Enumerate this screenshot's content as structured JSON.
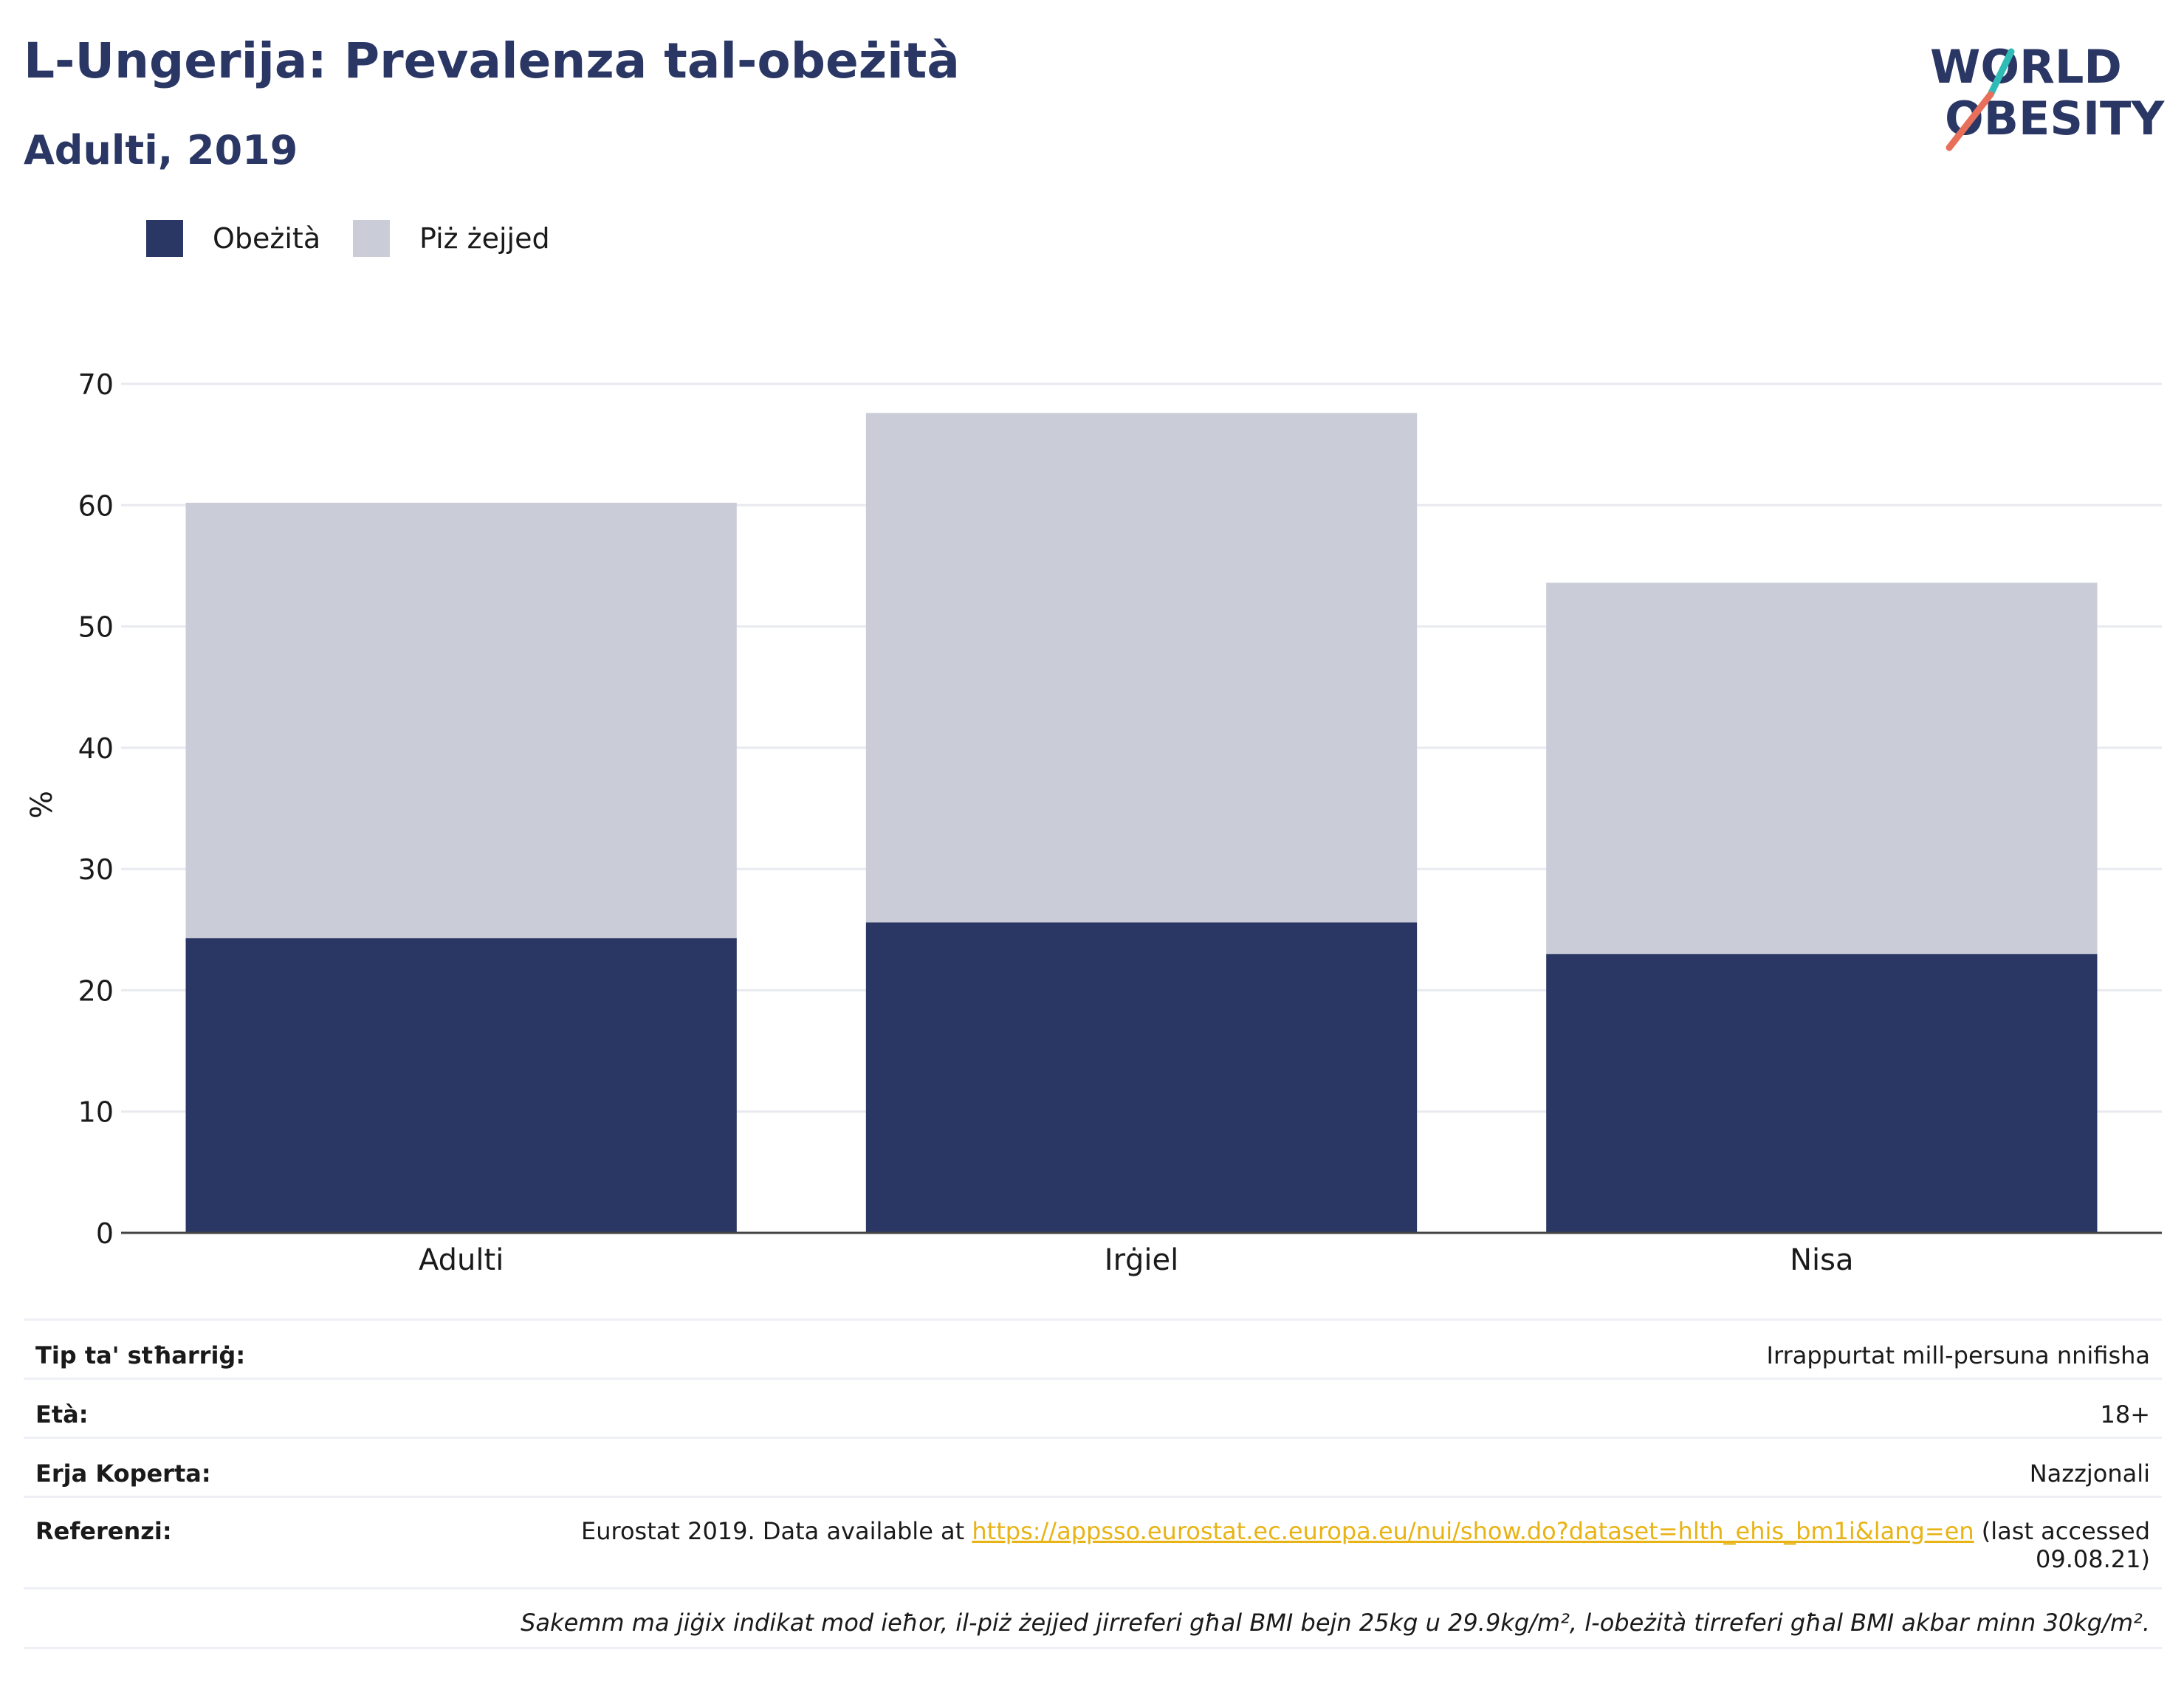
{
  "header": {
    "title": "L-Ungerija: Prevalenza tal-obeżità",
    "subtitle": "Adulti, 2019"
  },
  "logo": {
    "line1": "WORLD",
    "line2": "OBESITY"
  },
  "colors": {
    "obesity": "#2a3764",
    "overweight": "#caccd7",
    "title": "#2a3764",
    "link": "#e8b314",
    "logo_teal": "#2fbcb6",
    "logo_coral": "#e8705a"
  },
  "chart_data": {
    "type": "bar",
    "stacked": true,
    "categories": [
      "Adulti",
      "Irġiel",
      "Nisa"
    ],
    "series": [
      {
        "name": "Obeżità",
        "values": [
          24.3,
          25.6,
          23.0
        ]
      },
      {
        "name": "Piż żejjed",
        "values": [
          35.9,
          42.0,
          30.6
        ]
      }
    ],
    "ylabel": "%",
    "ylim": [
      0,
      70
    ],
    "yticks": [
      0,
      10,
      20,
      30,
      40,
      50,
      60,
      70
    ],
    "grid": true,
    "legend": "top-left"
  },
  "info": {
    "survey_type_label": "Tip ta' stħarriġ:",
    "survey_type_value": "Irrappurtat mill-persuna nnifisha",
    "age_label": "Età:",
    "age_value": "18+",
    "area_label": "Erja Koperta:",
    "area_value": "Nazzjonali",
    "refs_label": "Referenzi:",
    "refs_prefix": "Eurostat 2019. Data available at ",
    "refs_link": "https://appsso.eurostat.ec.europa.eu/nui/show.do?dataset=hlth_ehis_bm1i&lang=en",
    "refs_suffix_1": " (last accessed",
    "refs_suffix_2": "09.08.21)",
    "note": "Sakemm ma jiġix indikat mod ieħor, il-piż żejjed jirreferi għal BMI bejn 25kg u 29.9kg/m², l-obeżità tirreferi għal BMI akbar minn 30kg/m²."
  }
}
